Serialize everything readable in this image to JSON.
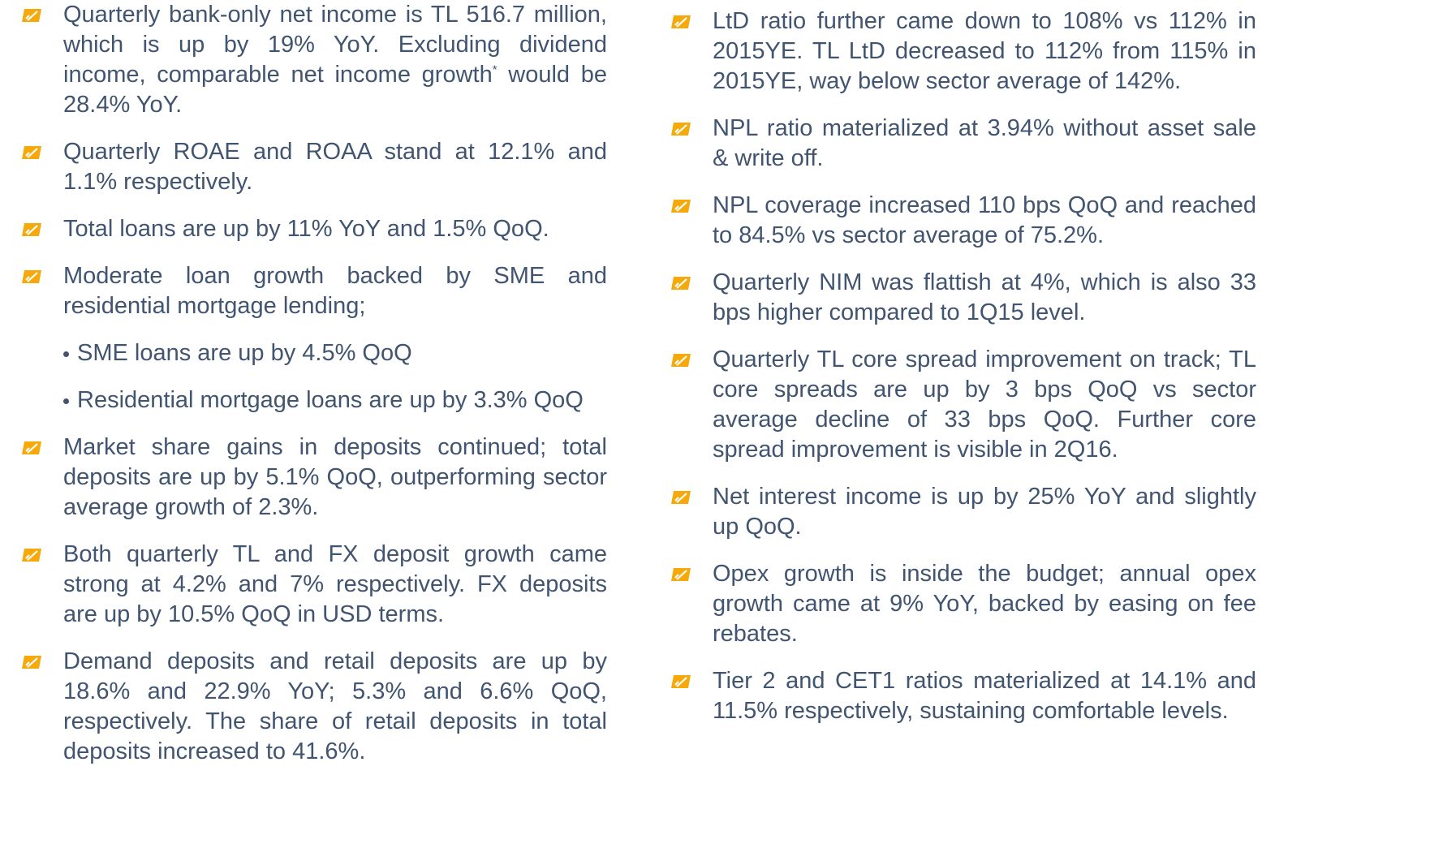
{
  "left": [
    {
      "text": "Quarterly bank-only net income is TL 516.7 million, which is up by 19% YoY. Excluding dividend income, comparable net income growth",
      "sup": "*",
      "rest": " would be 28.4% YoY."
    },
    {
      "text": "Quarterly ROAE and ROAA stand at 12.1% and 1.1% respectively."
    },
    {
      "text": "Total loans are up by 11% YoY and 1.5% QoQ."
    },
    {
      "text": "Moderate loan growth backed by SME and residential mortgage lending;",
      "subs": [
        "SME loans are up by 4.5% QoQ",
        "Residential mortgage loans are up by 3.3% QoQ"
      ]
    },
    {
      "text": "Market share gains in deposits continued; total deposits are up by 5.1% QoQ, outperforming sector average growth of 2.3%."
    },
    {
      "text": "Both quarterly TL and FX deposit growth came strong at 4.2% and 7% respectively. FX deposits are up by 10.5% QoQ in USD terms."
    },
    {
      "text": "Demand deposits and retail deposits are up by 18.6% and 22.9% YoY; 5.3% and 6.6% QoQ, respectively. The share of retail deposits in total deposits increased to 41.6%."
    }
  ],
  "right": [
    {
      "text": "LtD ratio further came down to 108% vs 112% in 2015YE. TL LtD decreased to 112% from 115% in 2015YE, way below sector average of 142%."
    },
    {
      "text": "NPL ratio materialized at 3.94% without asset sale & write off."
    },
    {
      "text": "NPL coverage increased 110 bps QoQ and reached to 84.5% vs sector average of 75.2%."
    },
    {
      "text": "Quarterly NIM was flattish at 4%, which is also 33 bps higher compared to 1Q15 level."
    },
    {
      "text": "Quarterly TL core spread improvement on track; TL core spreads are up by 3 bps QoQ vs sector average decline of 33 bps QoQ. Further core spread improvement is visible in 2Q16."
    },
    {
      "text": "Net interest income is up by 25% YoY and slightly up QoQ."
    },
    {
      "text": "Opex growth is inside the budget; annual opex growth came at 9% YoY, backed by easing on fee rebates."
    },
    {
      "text": "Tier 2 and CET1 ratios materialized at 14.1% and 11.5% respectively, sustaining comfortable levels."
    }
  ]
}
